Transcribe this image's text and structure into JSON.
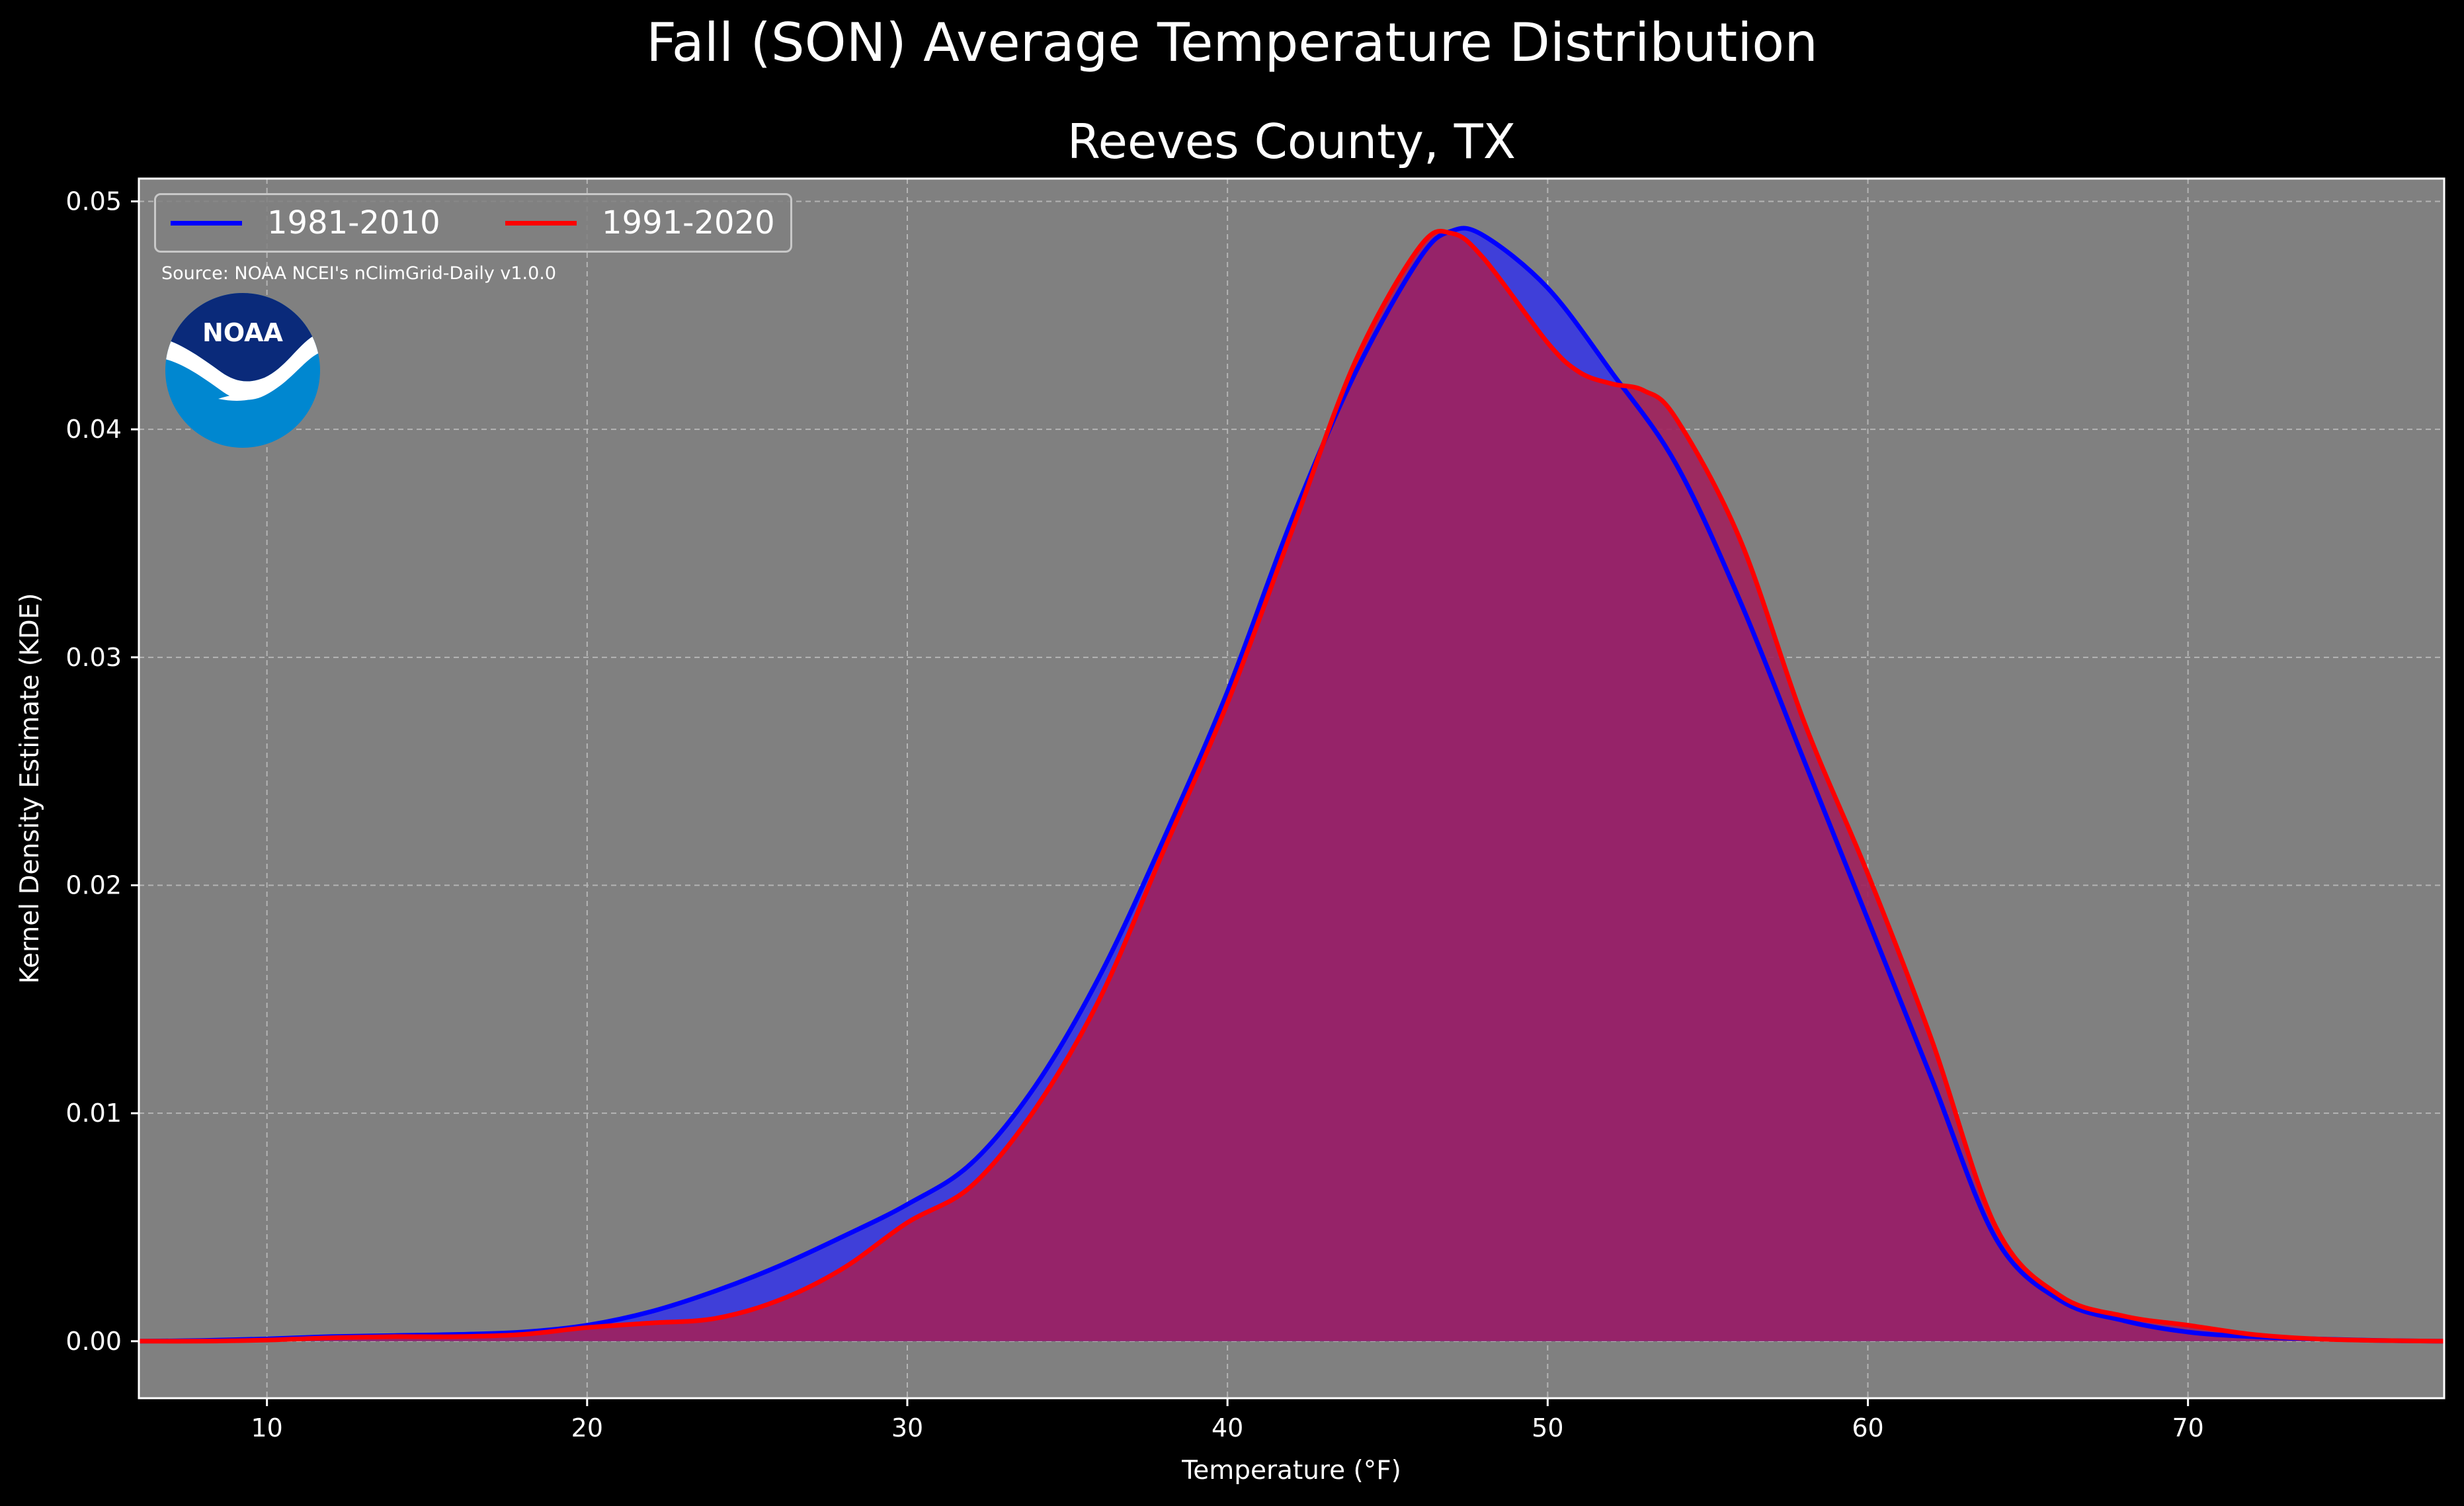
{
  "title": "Fall (SON) Average Temperature Distribution",
  "subtitle": "Reeves County, TX",
  "source": "Source: NOAA NCEI's nClimGrid-Daily v1.0.0",
  "logo_text": "NOAA",
  "colors": {
    "background": "#000000",
    "plot_background": "#808080",
    "series_1981": "#0000ff",
    "series_1991": "#ff0000",
    "fill_1981": "#3f3fd9",
    "fill_1991": "#a0205c",
    "logo_dark": "#0a2a7a",
    "logo_light": "#0087d0"
  },
  "chart_data": {
    "type": "area",
    "xlabel": "Temperature (°F)",
    "ylabel": "Kernel Density Estimate (KDE)",
    "xlim": [
      6,
      78
    ],
    "ylim": [
      -0.0025,
      0.051
    ],
    "xticks": [
      10,
      20,
      30,
      40,
      50,
      60,
      70
    ],
    "yticks": [
      0.0,
      0.01,
      0.02,
      0.03,
      0.04,
      0.05
    ],
    "xtick_labels": [
      "10",
      "20",
      "30",
      "40",
      "50",
      "60",
      "70"
    ],
    "ytick_labels": [
      "0.00",
      "0.01",
      "0.02",
      "0.03",
      "0.04",
      "0.05"
    ],
    "grid": true,
    "legend_position": "top-left",
    "series": [
      {
        "name": "1981-2010",
        "color": "#0000ff",
        "x": [
          6,
          8,
          10,
          12,
          14,
          16,
          18,
          20,
          22,
          24,
          26,
          28,
          30,
          32,
          34,
          36,
          38,
          40,
          42,
          44,
          46,
          47,
          48,
          50,
          52,
          54,
          56,
          58,
          60,
          62,
          64,
          66,
          68,
          70,
          72,
          74,
          76,
          78
        ],
        "y": [
          0.0,
          3e-05,
          0.0001,
          0.0002,
          0.00025,
          0.0003,
          0.0004,
          0.0007,
          0.0013,
          0.0022,
          0.0033,
          0.0046,
          0.006,
          0.0078,
          0.0112,
          0.016,
          0.022,
          0.0285,
          0.036,
          0.0425,
          0.0475,
          0.0487,
          0.0485,
          0.0462,
          0.0425,
          0.0385,
          0.0325,
          0.0255,
          0.0185,
          0.0115,
          0.0045,
          0.0018,
          0.0009,
          0.0004,
          0.0002,
          0.0001,
          3e-05,
          0.0
        ]
      },
      {
        "name": "1991-2020",
        "color": "#ff0000",
        "x": [
          6,
          8,
          10,
          12,
          14,
          16,
          18,
          20,
          22,
          24,
          26,
          28,
          30,
          32,
          34,
          36,
          38,
          40,
          42,
          44,
          46,
          47,
          48,
          50,
          51,
          52,
          53,
          54,
          56,
          58,
          60,
          62,
          64,
          66,
          68,
          70,
          72,
          74,
          76,
          78
        ],
        "y": [
          0.0,
          0.0,
          5e-05,
          0.00015,
          0.0002,
          0.0002,
          0.0003,
          0.0006,
          0.0008,
          0.001,
          0.0018,
          0.0032,
          0.0052,
          0.0068,
          0.0102,
          0.015,
          0.0215,
          0.028,
          0.0355,
          0.043,
          0.048,
          0.0486,
          0.0475,
          0.0438,
          0.0425,
          0.042,
          0.0417,
          0.0405,
          0.0352,
          0.0272,
          0.0205,
          0.0132,
          0.005,
          0.002,
          0.0011,
          0.0007,
          0.0003,
          0.0001,
          3e-05,
          0.0
        ]
      }
    ]
  }
}
